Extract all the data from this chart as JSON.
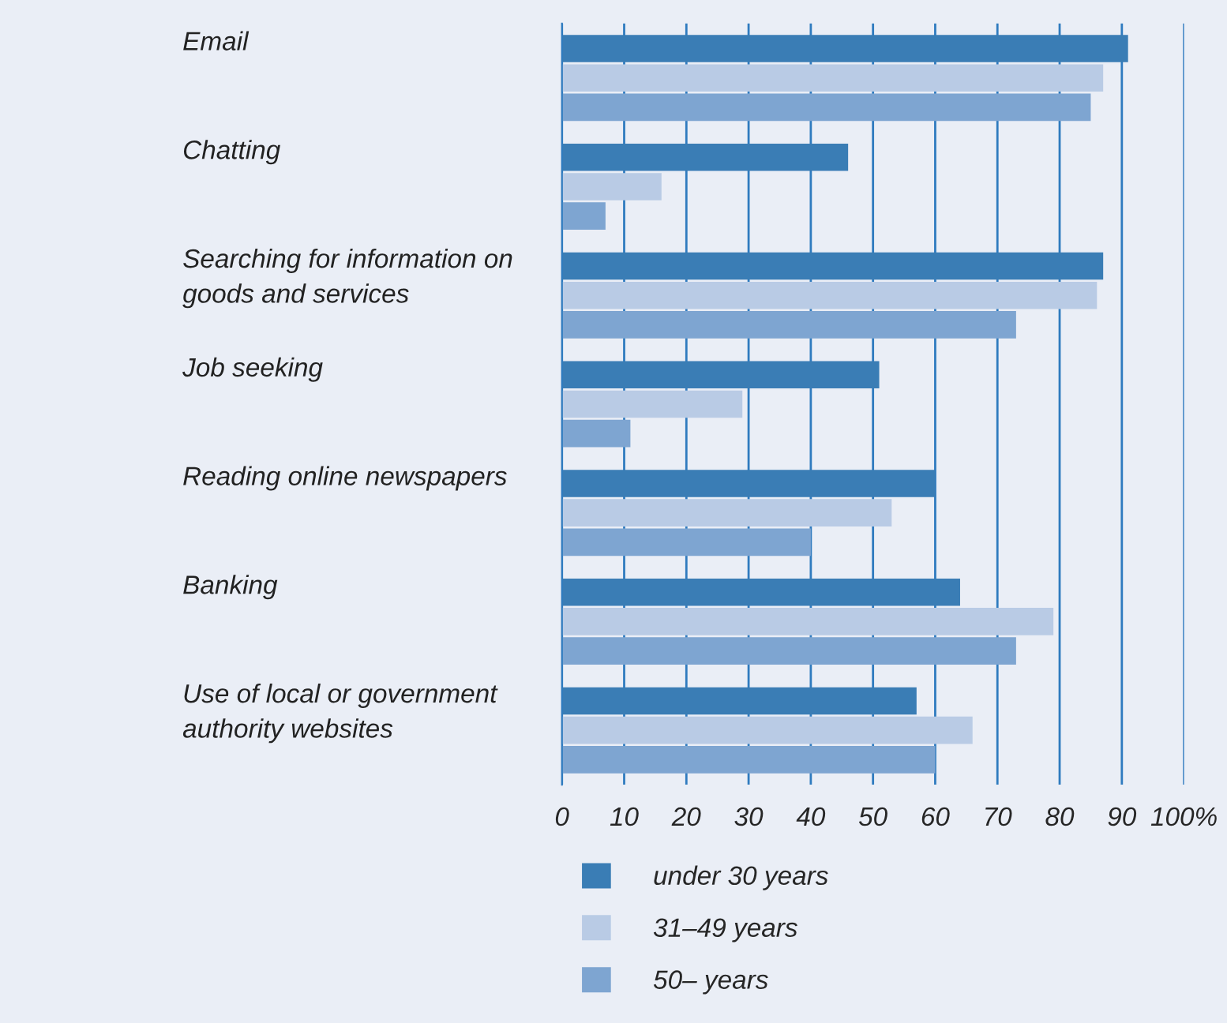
{
  "chart_data": {
    "type": "bar",
    "orientation": "horizontal",
    "categories": [
      "Email",
      "Chatting",
      "Searching for information on\ngoods and services",
      "Job seeking",
      "Reading online newspapers",
      "Banking",
      "Use of local or government\nauthority websites"
    ],
    "series": [
      {
        "name": "under 30 years",
        "color": "#3a7db5",
        "values": [
          91,
          46,
          87,
          51,
          60,
          64,
          57
        ]
      },
      {
        "name": "31–49 years",
        "color": "#b9cbe5",
        "values": [
          87,
          16,
          86,
          29,
          53,
          79,
          66
        ]
      },
      {
        "name": "50– years",
        "color": "#7ea5d1",
        "values": [
          85,
          7,
          73,
          11,
          40,
          73,
          60
        ]
      }
    ],
    "xlim": [
      0,
      100
    ],
    "xticks": [
      0,
      10,
      20,
      30,
      40,
      50,
      60,
      70,
      80,
      90,
      {
        "value": 100,
        "label": "100%"
      }
    ],
    "grid": "x",
    "legend": "bottom"
  }
}
